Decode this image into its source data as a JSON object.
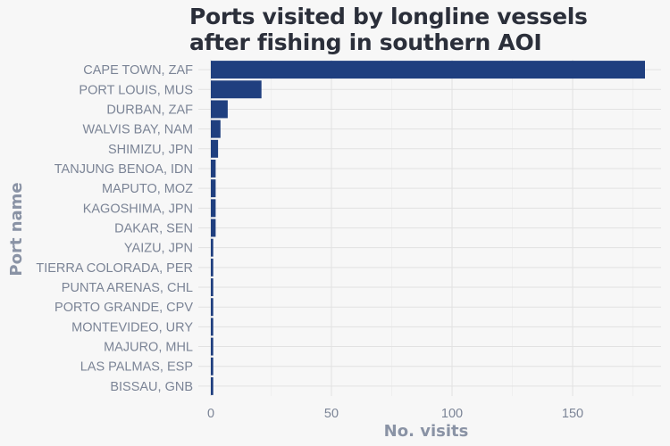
{
  "chart_data": {
    "type": "bar",
    "orientation": "horizontal",
    "title_lines": [
      "Ports visited by longline vessels",
      "after fishing in southern AOI"
    ],
    "xlabel": "No. visits",
    "ylabel": "Port name",
    "xlim": [
      0,
      185
    ],
    "xticks": [
      0,
      50,
      100,
      150
    ],
    "grid": true,
    "bar_color": "#1f3f7f",
    "categories": [
      "CAPE TOWN, ZAF",
      "PORT LOUIS, MUS",
      "DURBAN, ZAF",
      "WALVIS BAY, NAM",
      "SHIMIZU, JPN",
      "TANJUNG BENOA, IDN",
      "MAPUTO, MOZ",
      "KAGOSHIMA, JPN",
      "DAKAR, SEN",
      "YAIZU, JPN",
      "TIERRA COLORADA, PER",
      "PUNTA ARENAS, CHL",
      "PORTO GRANDE, CPV",
      "MONTEVIDEO, URY",
      "MAJURO, MHL",
      "LAS PALMAS, ESP",
      "BISSAU, GNB"
    ],
    "values": [
      180,
      21,
      7,
      4,
      3,
      2,
      2,
      2,
      2,
      1,
      1,
      1,
      1,
      1,
      1,
      1,
      1
    ]
  }
}
